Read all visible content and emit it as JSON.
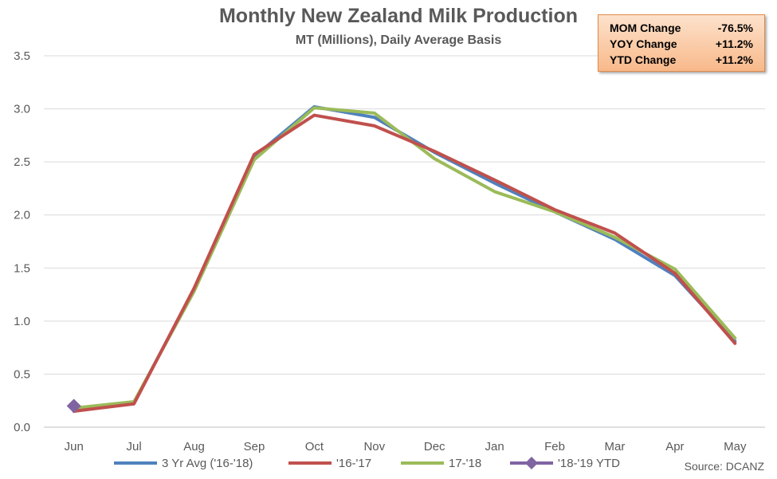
{
  "chart_data": {
    "type": "line",
    "title": "Monthly New Zealand Milk Production",
    "subtitle": "MT (Millions), Daily Average Basis",
    "categories": [
      "Jun",
      "Jul",
      "Aug",
      "Sep",
      "Oct",
      "Nov",
      "Dec",
      "Jan",
      "Feb",
      "Mar",
      "Apr",
      "May"
    ],
    "ylim": [
      0,
      3.5
    ],
    "yticks": [
      "0.0",
      "0.5",
      "1.0",
      "1.5",
      "2.0",
      "2.5",
      "3.0",
      "3.5"
    ],
    "grid": true,
    "legend_position": "bottom",
    "series": [
      {
        "name": "3 Yr Avg ('16-'18)",
        "color": "#4f81bd",
        "values": [
          0.17,
          0.23,
          1.3,
          2.55,
          3.02,
          2.92,
          2.59,
          2.3,
          2.03,
          1.77,
          1.43,
          0.81
        ]
      },
      {
        "name": "'16-'17",
        "color": "#c0504d",
        "values": [
          0.15,
          0.22,
          1.31,
          2.57,
          2.94,
          2.84,
          2.6,
          2.33,
          2.05,
          1.83,
          1.45,
          0.79
        ]
      },
      {
        "name": "17-'18",
        "color": "#9bbb59",
        "values": [
          0.18,
          0.24,
          1.28,
          2.52,
          3.01,
          2.96,
          2.53,
          2.22,
          2.03,
          1.79,
          1.49,
          0.84
        ]
      },
      {
        "name": "'18-'19 YTD",
        "color": "#8064a2",
        "marker": "diamond",
        "values": [
          0.2,
          null,
          null,
          null,
          null,
          null,
          null,
          null,
          null,
          null,
          null,
          null
        ]
      }
    ],
    "source": "Source: DCANZ"
  },
  "stats": [
    {
      "label": "MOM Change",
      "value": "-76.5%"
    },
    {
      "label": "YOY Change",
      "value": "+11.2%"
    },
    {
      "label": "YTD Change",
      "value": "+11.2%"
    }
  ]
}
